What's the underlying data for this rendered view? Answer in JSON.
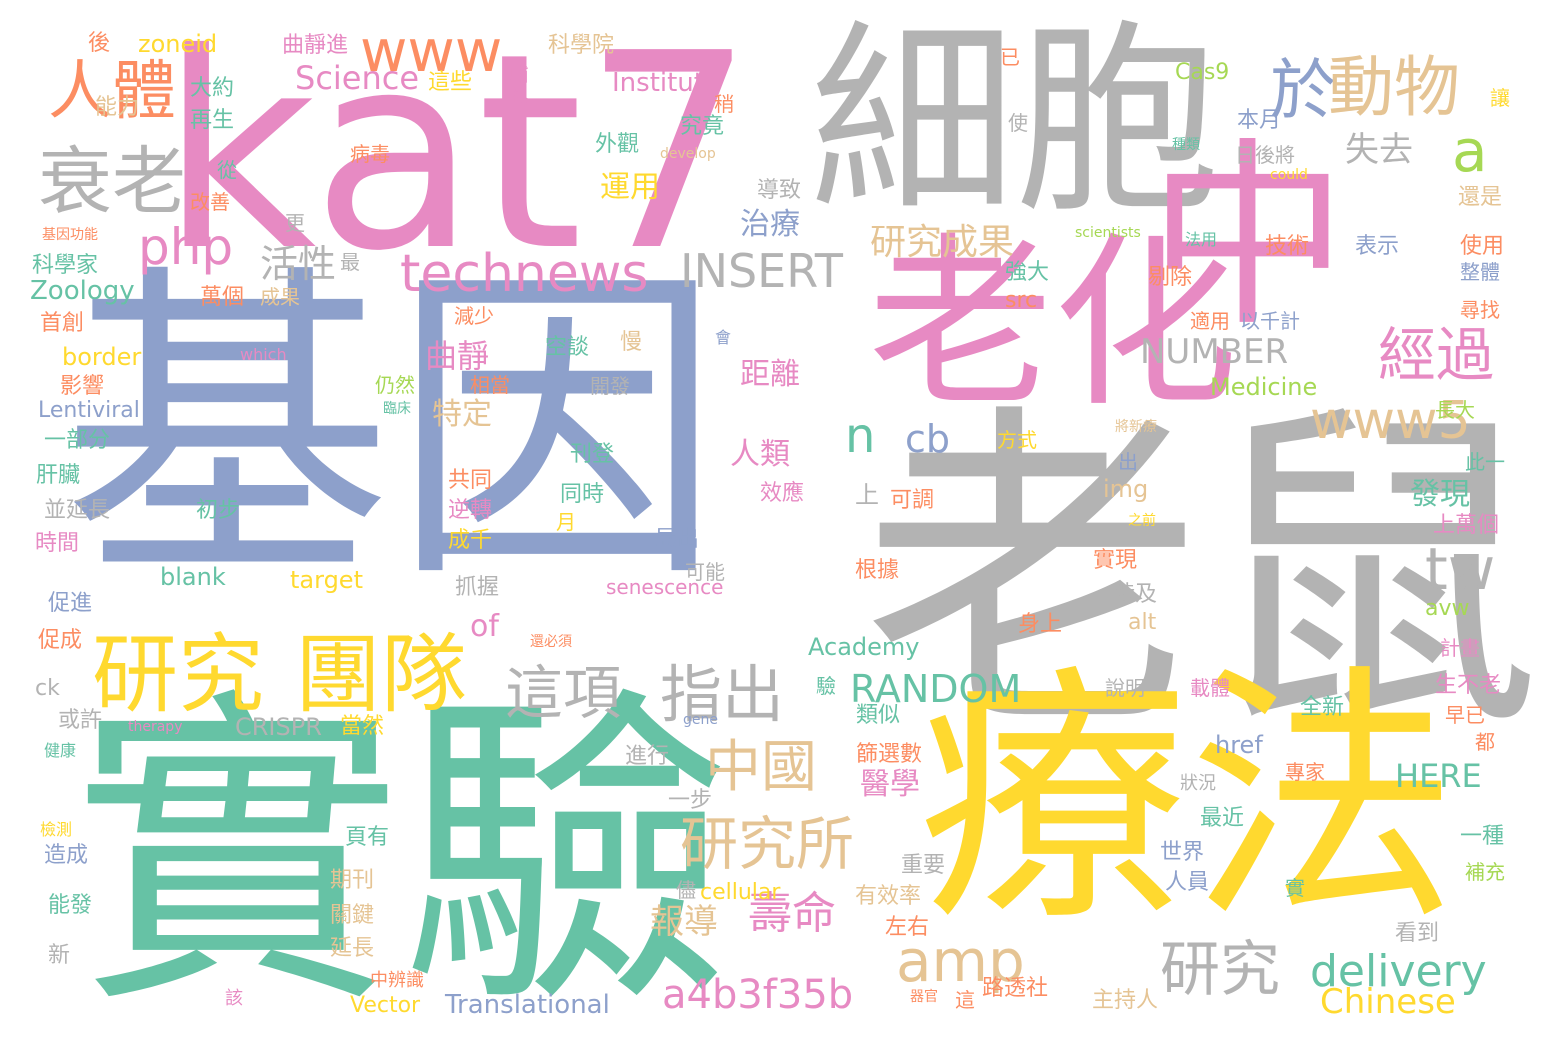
{
  "palette": {
    "teal": "#66c2a5",
    "orange": "#fc8d62",
    "blue": "#8da0cb",
    "pink": "#e78ac3",
    "green": "#a6d854",
    "yellow": "#ffd92f",
    "tan": "#e5c494",
    "gray": "#b3b3b3"
  },
  "words": [
    {
      "text": "基因",
      "color": "blue"
    },
    {
      "text": "老鼠",
      "color": "gray"
    },
    {
      "text": "實驗",
      "color": "teal"
    },
    {
      "text": "療法",
      "color": "yellow"
    },
    {
      "text": "kat7",
      "color": "pink"
    },
    {
      "text": "細胞",
      "color": "gray"
    },
    {
      "text": "中",
      "color": "pink"
    },
    {
      "text": "老化",
      "color": "pink"
    },
    {
      "text": "研究",
      "color": "yellow"
    },
    {
      "text": "團隊",
      "color": "yellow"
    },
    {
      "text": "衰老",
      "color": "gray"
    },
    {
      "text": "人體",
      "color": "orange"
    },
    {
      "text": "www",
      "color": "orange"
    },
    {
      "text": "於",
      "color": "blue"
    },
    {
      "text": "動物",
      "color": "tan"
    },
    {
      "text": "technews",
      "color": "pink"
    },
    {
      "text": "INSERT",
      "color": "gray"
    },
    {
      "text": "php",
      "color": "pink"
    },
    {
      "text": "a",
      "color": "green"
    },
    {
      "text": "經過",
      "color": "pink"
    },
    {
      "text": "www5",
      "color": "tan"
    },
    {
      "text": "這項",
      "color": "gray"
    },
    {
      "text": "指出",
      "color": "gray"
    },
    {
      "text": "中國",
      "color": "tan"
    },
    {
      "text": "研究所",
      "color": "tan"
    },
    {
      "text": "amp",
      "color": "tan"
    },
    {
      "text": "研究",
      "color": "gray"
    },
    {
      "text": "delivery",
      "color": "teal"
    },
    {
      "text": "tw",
      "color": "gray"
    },
    {
      "text": "壽命",
      "color": "pink"
    },
    {
      "text": "a4b3f35b",
      "color": "pink"
    },
    {
      "text": "RANDOM",
      "color": "teal"
    },
    {
      "text": "NUMBER",
      "color": "gray"
    },
    {
      "text": "研究成果",
      "color": "tan"
    },
    {
      "text": "cb",
      "color": "blue"
    },
    {
      "text": "n",
      "color": "teal"
    },
    {
      "text": "Science",
      "color": "pink"
    },
    {
      "text": "活性",
      "color": "gray"
    },
    {
      "text": "治療",
      "color": "blue"
    },
    {
      "text": "失去",
      "color": "gray"
    },
    {
      "text": "運用",
      "color": "yellow"
    },
    {
      "text": "曲靜",
      "color": "pink"
    },
    {
      "text": "距離",
      "color": "pink"
    },
    {
      "text": "特定",
      "color": "tan"
    },
    {
      "text": "人類",
      "color": "pink"
    },
    {
      "text": "發現",
      "color": "teal"
    },
    {
      "text": "Chinese",
      "color": "yellow"
    },
    {
      "text": "報導",
      "color": "tan"
    },
    {
      "text": "醫學",
      "color": "pink"
    },
    {
      "text": "HERE",
      "color": "teal"
    },
    {
      "text": "Medicine",
      "color": "green"
    },
    {
      "text": "Academy",
      "color": "teal"
    },
    {
      "text": "Translational",
      "color": "blue"
    },
    {
      "text": "Zoology",
      "color": "teal"
    },
    {
      "text": "Institute",
      "color": "pink"
    },
    {
      "text": "CRISPR",
      "color": "gray"
    },
    {
      "text": "Lentiviral",
      "color": "blue"
    },
    {
      "text": "Cas9",
      "color": "green"
    },
    {
      "text": "zoneid",
      "color": "yellow"
    },
    {
      "text": "border",
      "color": "yellow"
    },
    {
      "text": "target",
      "color": "yellow"
    },
    {
      "text": "blank",
      "color": "teal"
    },
    {
      "text": "senescence",
      "color": "pink"
    },
    {
      "text": "of",
      "color": "pink"
    },
    {
      "text": "cellular",
      "color": "yellow"
    },
    {
      "text": "Vector",
      "color": "yellow"
    },
    {
      "text": "img",
      "color": "tan"
    },
    {
      "text": "href",
      "color": "blue"
    },
    {
      "text": "src",
      "color": "orange"
    },
    {
      "text": "alt",
      "color": "tan"
    },
    {
      "text": "avw",
      "color": "green"
    },
    {
      "text": "ck",
      "color": "gray"
    },
    {
      "text": "therapy",
      "color": "pink"
    },
    {
      "text": "gene",
      "color": "blue"
    },
    {
      "text": "which",
      "color": "pink"
    },
    {
      "text": "scientists",
      "color": "green"
    },
    {
      "text": "develop",
      "color": "tan"
    },
    {
      "text": "could",
      "color": "yellow"
    },
    {
      "text": "曲靜進",
      "color": "pink"
    },
    {
      "text": "科學院",
      "color": "tan"
    },
    {
      "text": "哺乳",
      "color": "pink"
    },
    {
      "text": "這些",
      "color": "yellow"
    },
    {
      "text": "後",
      "color": "orange"
    },
    {
      "text": "大約",
      "color": "teal"
    },
    {
      "text": "能力",
      "color": "tan"
    },
    {
      "text": "再生",
      "color": "teal"
    },
    {
      "text": "稍",
      "color": "orange"
    },
    {
      "text": "究竟",
      "color": "teal"
    },
    {
      "text": "本月",
      "color": "blue"
    },
    {
      "text": "讓",
      "color": "yellow"
    },
    {
      "text": "已",
      "color": "orange"
    },
    {
      "text": "使",
      "color": "gray"
    },
    {
      "text": "種類",
      "color": "teal"
    },
    {
      "text": "外觀",
      "color": "teal"
    },
    {
      "text": "病毒",
      "color": "orange"
    },
    {
      "text": "從",
      "color": "teal"
    },
    {
      "text": "改善",
      "color": "orange"
    },
    {
      "text": "導致",
      "color": "gray"
    },
    {
      "text": "日後將",
      "color": "gray"
    },
    {
      "text": "還是",
      "color": "tan"
    },
    {
      "text": "基因功能",
      "color": "orange"
    },
    {
      "text": "更",
      "color": "gray"
    },
    {
      "text": "科學家",
      "color": "teal"
    },
    {
      "text": "最",
      "color": "gray"
    },
    {
      "text": "萬個",
      "color": "orange"
    },
    {
      "text": "成果",
      "color": "tan"
    },
    {
      "text": "首創",
      "color": "orange"
    },
    {
      "text": "減少",
      "color": "orange"
    },
    {
      "text": "技術",
      "color": "orange"
    },
    {
      "text": "表示",
      "color": "blue"
    },
    {
      "text": "使用",
      "color": "orange"
    },
    {
      "text": "整體",
      "color": "blue"
    },
    {
      "text": "法用",
      "color": "teal"
    },
    {
      "text": "強大",
      "color": "teal"
    },
    {
      "text": "剔除",
      "color": "orange"
    },
    {
      "text": "尋找",
      "color": "orange"
    },
    {
      "text": "適用",
      "color": "orange"
    },
    {
      "text": "以千計",
      "color": "blue"
    },
    {
      "text": "空談",
      "color": "teal"
    },
    {
      "text": "慢",
      "color": "tan"
    },
    {
      "text": "會",
      "color": "blue"
    },
    {
      "text": "影響",
      "color": "orange"
    },
    {
      "text": "仍然",
      "color": "green"
    },
    {
      "text": "相當",
      "color": "orange"
    },
    {
      "text": "開發",
      "color": "gray"
    },
    {
      "text": "臨床",
      "color": "teal"
    },
    {
      "text": "長大",
      "color": "green"
    },
    {
      "text": "一部分",
      "color": "teal"
    },
    {
      "text": "方式",
      "color": "yellow"
    },
    {
      "text": "將新療",
      "color": "tan"
    },
    {
      "text": "刊登",
      "color": "teal"
    },
    {
      "text": "出",
      "color": "blue"
    },
    {
      "text": "此一",
      "color": "teal"
    },
    {
      "text": "肝臟",
      "color": "teal"
    },
    {
      "text": "共同",
      "color": "orange"
    },
    {
      "text": "同時",
      "color": "teal"
    },
    {
      "text": "效應",
      "color": "pink"
    },
    {
      "text": "上",
      "color": "gray"
    },
    {
      "text": "可調",
      "color": "orange"
    },
    {
      "text": "並延長",
      "color": "gray"
    },
    {
      "text": "初步",
      "color": "teal"
    },
    {
      "text": "逆轉",
      "color": "pink"
    },
    {
      "text": "月",
      "color": "yellow"
    },
    {
      "text": "之前",
      "color": "yellow"
    },
    {
      "text": "上萬個",
      "color": "pink"
    },
    {
      "text": "時間",
      "color": "pink"
    },
    {
      "text": "成千",
      "color": "yellow"
    },
    {
      "text": "展出",
      "color": "blue"
    },
    {
      "text": "根據",
      "color": "orange"
    },
    {
      "text": "實現",
      "color": "orange"
    },
    {
      "text": "可能",
      "color": "gray"
    },
    {
      "text": "促進",
      "color": "blue"
    },
    {
      "text": "抓握",
      "color": "gray"
    },
    {
      "text": "涉及",
      "color": "gray"
    },
    {
      "text": "身上",
      "color": "orange"
    },
    {
      "text": "促成",
      "color": "orange"
    },
    {
      "text": "還必須",
      "color": "orange"
    },
    {
      "text": "計畫",
      "color": "pink"
    },
    {
      "text": "驗",
      "color": "teal"
    },
    {
      "text": "說明",
      "color": "gray"
    },
    {
      "text": "載體",
      "color": "pink"
    },
    {
      "text": "生不老",
      "color": "pink"
    },
    {
      "text": "或許",
      "color": "gray"
    },
    {
      "text": "當然",
      "color": "yellow"
    },
    {
      "text": "類似",
      "color": "teal"
    },
    {
      "text": "全新",
      "color": "teal"
    },
    {
      "text": "早已",
      "color": "orange"
    },
    {
      "text": "健康",
      "color": "teal"
    },
    {
      "text": "都",
      "color": "orange"
    },
    {
      "text": "進行",
      "color": "gray"
    },
    {
      "text": "篩選數",
      "color": "orange"
    },
    {
      "text": "專家",
      "color": "orange"
    },
    {
      "text": "狀況",
      "color": "gray"
    },
    {
      "text": "一步",
      "color": "gray"
    },
    {
      "text": "最近",
      "color": "teal"
    },
    {
      "text": "檢測",
      "color": "yellow"
    },
    {
      "text": "頁有",
      "color": "teal"
    },
    {
      "text": "世界",
      "color": "blue"
    },
    {
      "text": "一種",
      "color": "teal"
    },
    {
      "text": "造成",
      "color": "blue"
    },
    {
      "text": "人員",
      "color": "blue"
    },
    {
      "text": "補充",
      "color": "green"
    },
    {
      "text": "期刊",
      "color": "tan"
    },
    {
      "text": "重要",
      "color": "gray"
    },
    {
      "text": "能發",
      "color": "teal"
    },
    {
      "text": "儘",
      "color": "gray"
    },
    {
      "text": "有效率",
      "color": "tan"
    },
    {
      "text": "實",
      "color": "teal"
    },
    {
      "text": "關鍵",
      "color": "tan"
    },
    {
      "text": "左右",
      "color": "orange"
    },
    {
      "text": "看到",
      "color": "gray"
    },
    {
      "text": "新",
      "color": "gray"
    },
    {
      "text": "延長",
      "color": "tan"
    },
    {
      "text": "路透社",
      "color": "orange"
    },
    {
      "text": "中辨識",
      "color": "orange"
    },
    {
      "text": "主持人",
      "color": "tan"
    },
    {
      "text": "該",
      "color": "pink"
    },
    {
      "text": "器官",
      "color": "orange"
    },
    {
      "text": "這",
      "color": "orange"
    }
  ]
}
